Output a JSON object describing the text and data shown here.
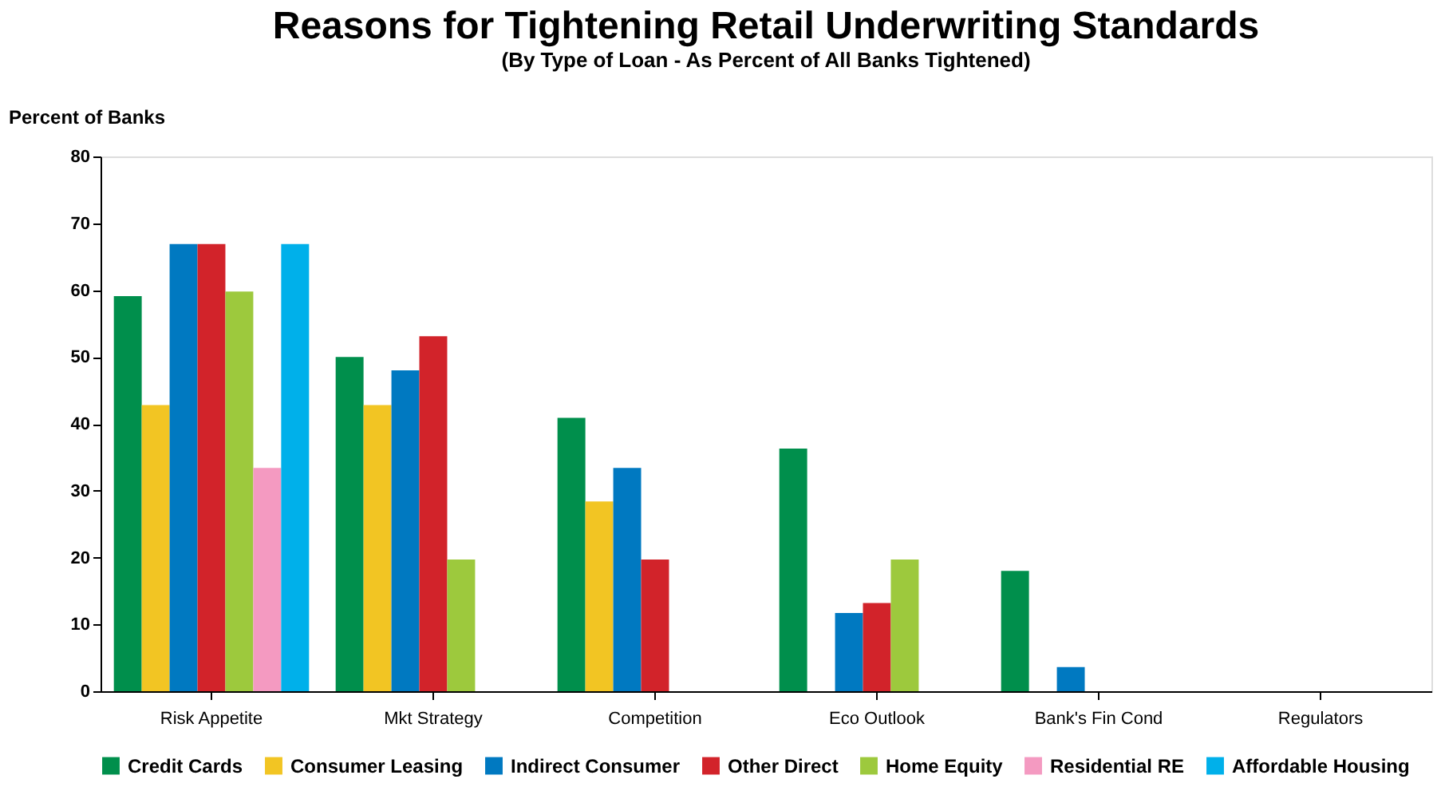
{
  "chart_data": {
    "type": "bar",
    "title": "Reasons for Tightening Retail Underwriting Standards",
    "subtitle": "(By Type of Loan - As Percent of All Banks Tightened)",
    "ylabel": "Percent of Banks",
    "categories": [
      "Risk Appetite",
      "Mkt Strategy",
      "Competition",
      "Eco Outlook",
      "Bank's Fin Cond",
      "Regulators"
    ],
    "series": [
      {
        "name": "Credit Cards",
        "color": "#008f4c",
        "values": [
          59.1,
          50,
          40.9,
          36.3,
          18,
          null
        ]
      },
      {
        "name": "Consumer Leasing",
        "color": "#f2c523",
        "values": [
          42.8,
          42.8,
          28.4,
          null,
          null,
          null
        ]
      },
      {
        "name": "Indirect Consumer",
        "color": "#0079c1",
        "values": [
          66.9,
          48,
          33.4,
          11.7,
          3.6,
          null
        ]
      },
      {
        "name": "Other Direct",
        "color": "#d2232a",
        "values": [
          66.9,
          53.1,
          19.7,
          13.2,
          null,
          null
        ]
      },
      {
        "name": "Home Equity",
        "color": "#9dc93d",
        "values": [
          59.8,
          19.7,
          null,
          19.7,
          null,
          null
        ]
      },
      {
        "name": "Residential RE",
        "color": "#f49ac1",
        "values": [
          33.4,
          null,
          null,
          null,
          null,
          null
        ]
      },
      {
        "name": "Affordable Housing",
        "color": "#00b0ea",
        "values": [
          66.9,
          null,
          null,
          null,
          null,
          null
        ]
      }
    ],
    "ylim": [
      0,
      80
    ],
    "yticks": [
      0,
      10,
      20,
      30,
      40,
      50,
      60,
      70,
      80
    ],
    "grid": false,
    "legend": "bottom"
  }
}
